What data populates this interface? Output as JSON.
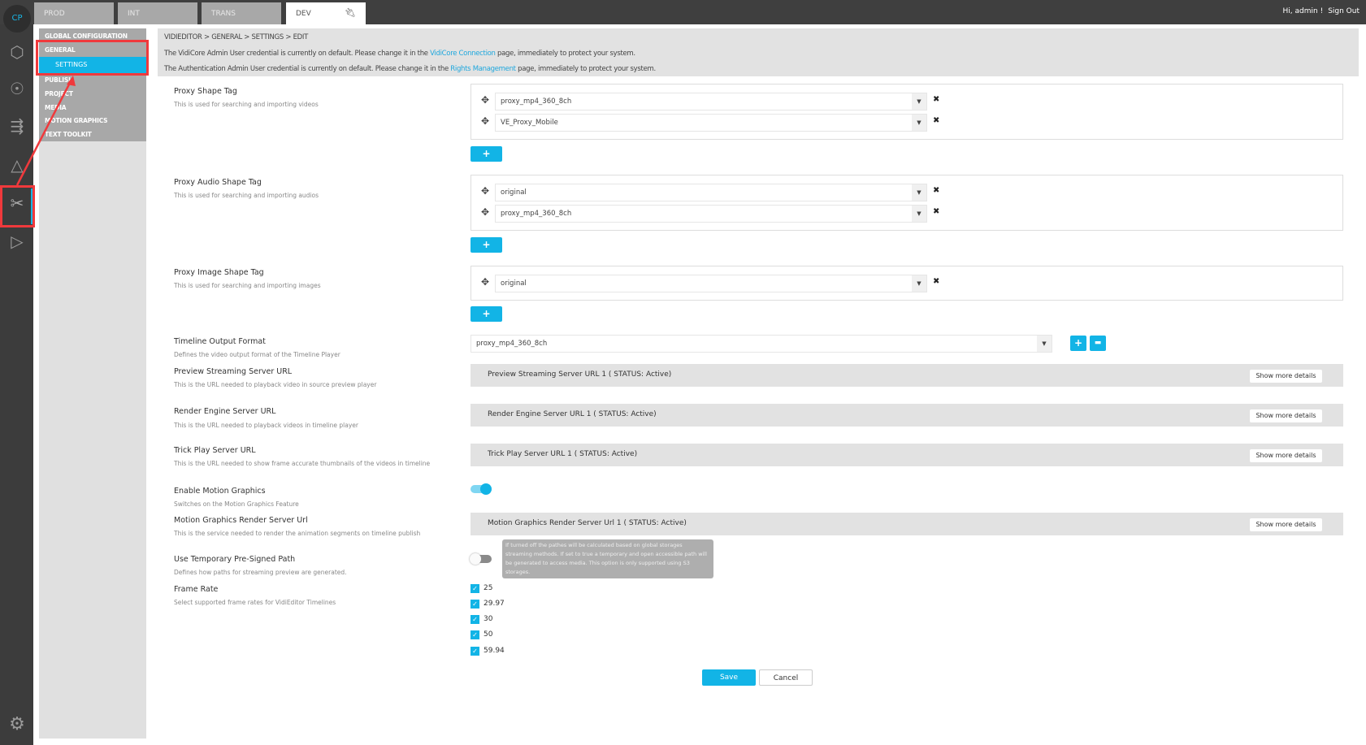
{
  "topbar": {
    "tabs": [
      {
        "label": "PROD"
      },
      {
        "label": "INT"
      },
      {
        "label": "TRANS"
      },
      {
        "label": "DEV",
        "active": true,
        "icon": "plug-icon"
      }
    ],
    "greeting": "Hi, admin !",
    "sign_out": "Sign Out"
  },
  "rail": {
    "logo": "CP",
    "icons": [
      "cubes-icon",
      "network-icon",
      "workflow-icon",
      "cycle-icon",
      "editor-icon",
      "publish-icon",
      "gear-icon"
    ],
    "active": "editor-icon"
  },
  "nav": {
    "items": [
      {
        "label": "GLOBAL CONFIGURATION"
      },
      {
        "label": "GENERAL"
      },
      {
        "label": "SETTINGS",
        "active": true
      },
      {
        "label": "PUBLISH"
      },
      {
        "label": "PROJECT"
      },
      {
        "label": "MEDIA"
      },
      {
        "label": "MOTION GRAPHICS"
      },
      {
        "label": "TEXT TOOLKIT"
      }
    ]
  },
  "header": {
    "breadcrumb": "VIDIEDITOR > GENERAL > SETTINGS > EDIT",
    "warning1": {
      "pre": "The VidiCore Admin User credential is currently on default. Please change it in the ",
      "link": "VidiCore Connection",
      "post": " page, immediately to protect your system."
    },
    "warning2": {
      "pre": "The Authentication Admin User credential is currently on default. Please change it in the ",
      "link": "Rights Management",
      "post": " page, immediately to protect your system."
    }
  },
  "form": {
    "proxy_shape": {
      "label": "Proxy Shape Tag",
      "desc": "This is used for searching and importing videos",
      "values": [
        "proxy_mp4_360_8ch",
        "VE_Proxy_Mobile"
      ]
    },
    "proxy_audio": {
      "label": "Proxy Audio Shape Tag",
      "desc": "This is used for searching and importing audios",
      "values": [
        "original",
        "proxy_mp4_360_8ch"
      ]
    },
    "proxy_image": {
      "label": "Proxy Image Shape Tag",
      "desc": "This is used for searching and importing images",
      "values": [
        "original"
      ]
    },
    "timeline_format": {
      "label": "Timeline Output Format",
      "desc": "Defines the video output format of the Timeline Player",
      "value": "proxy_mp4_360_8ch"
    },
    "preview_url": {
      "label": "Preview Streaming Server URL",
      "desc": "This is the URL needed to playback video in source preview player",
      "bar": "Preview Streaming Server URL 1 ( STATUS: Active)"
    },
    "render_url": {
      "label": "Render Engine Server URL",
      "desc": "This is the URL needed to playback videos in timeline player",
      "bar": "Render Engine Server URL 1 ( STATUS: Active)"
    },
    "trick_url": {
      "label": "Trick Play Server URL",
      "desc": "This is the URL needed to show frame accurate thumbnails of the videos in timeline",
      "bar": "Trick Play Server URL 1 ( STATUS: Active)"
    },
    "motion_enable": {
      "label": "Enable Motion Graphics",
      "desc": "Switches on the Motion Graphics Feature",
      "on": true
    },
    "motion_url": {
      "label": "Motion Graphics Render Server Url",
      "desc": "This is the service needed to render the animation segments on timeline publish",
      "bar": "Motion Graphics Render Server Url 1 ( STATUS: Active)"
    },
    "presigned": {
      "label": "Use Temporary Pre-Signed Path",
      "desc": "Defines how paths for streaming preview are generated.",
      "on": false,
      "tooltip": "If turned off the pathes will be calculated based on global storages streaming methods. If set to true a temporary and open accessible path will be generated to access media. This option is only supported using S3 storages."
    },
    "frame_rate": {
      "label": "Frame Rate",
      "desc": "Select supported frame rates for VidiEditor Timelines",
      "options": [
        {
          "label": "25",
          "checked": true
        },
        {
          "label": "29.97",
          "checked": true
        },
        {
          "label": "30",
          "checked": true
        },
        {
          "label": "50",
          "checked": true
        },
        {
          "label": "59.94",
          "checked": true
        }
      ]
    },
    "show_more": "Show more details",
    "plus": "+",
    "save": "Save",
    "cancel": "Cancel"
  },
  "colors": {
    "accent": "#12b4e6",
    "annotation": "#f0393c"
  }
}
